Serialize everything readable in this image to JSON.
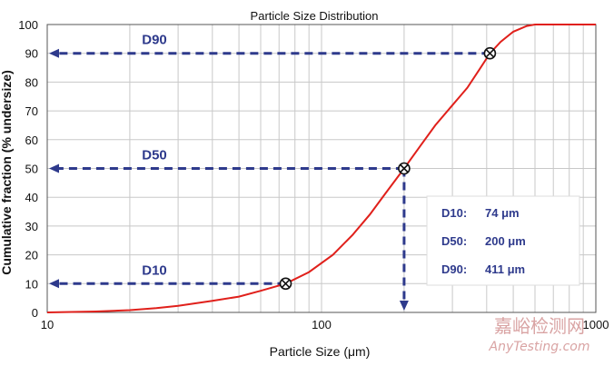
{
  "chart_data": {
    "type": "line",
    "title": "Particle Size Distribution",
    "xlabel": "Particle Size (μm)",
    "ylabel": "Cumulative fraction (% undersize)",
    "x_scale": "log",
    "xlim": [
      10,
      1000
    ],
    "ylim": [
      0,
      100
    ],
    "x_ticks": [
      "10",
      "100",
      "1000"
    ],
    "y_ticks": [
      "0",
      "10",
      "20",
      "30",
      "40",
      "50",
      "60",
      "70",
      "80",
      "90",
      "100"
    ],
    "grid": true,
    "series": [
      {
        "color": "#e0201b",
        "x": [
          10,
          15,
          20,
          25,
          30,
          40,
          50,
          60,
          74,
          90,
          110,
          130,
          150,
          170,
          200,
          230,
          260,
          300,
          340,
          380,
          411,
          450,
          500,
          560,
          600,
          650,
          1000
        ],
        "y": [
          0,
          0.3,
          0.8,
          1.5,
          2.3,
          4,
          5.5,
          7.5,
          10,
          14,
          20,
          27,
          34,
          41,
          50,
          58,
          65,
          72,
          78,
          85,
          90,
          94,
          97.5,
          99.5,
          100,
          100,
          100
        ]
      }
    ],
    "markers": [
      {
        "label": "D10",
        "x": 74,
        "y": 10
      },
      {
        "label": "D50",
        "x": 200,
        "y": 50
      },
      {
        "label": "D90",
        "x": 411,
        "y": 90
      }
    ],
    "annotation_color": "#2e3a8c",
    "summary": [
      {
        "key": "D10:",
        "value": "74 μm"
      },
      {
        "key": "D50:",
        "value": "200 μm"
      },
      {
        "key": "D90:",
        "value": "411 μm"
      }
    ]
  },
  "watermark": {
    "line1": "嘉峪检测网",
    "line2": "AnyTesting.com"
  }
}
